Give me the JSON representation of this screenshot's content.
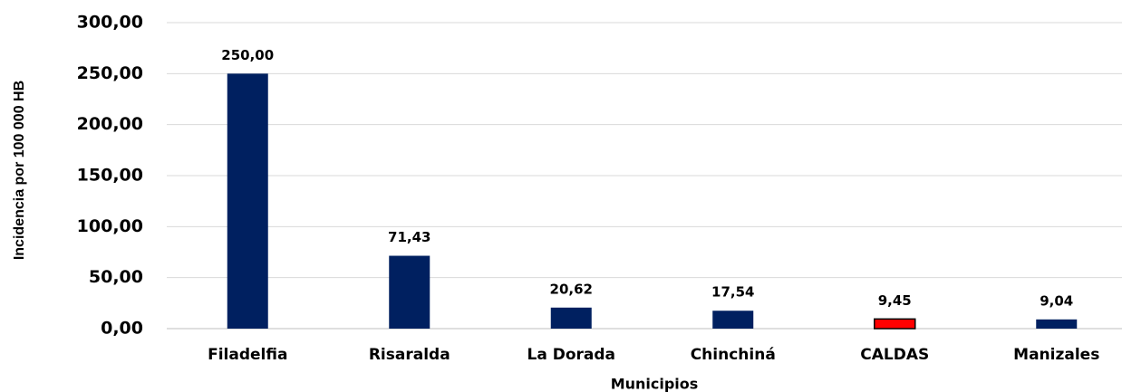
{
  "chart_data": {
    "type": "bar",
    "xlabel": "Municipios",
    "ylabel": "Incidencia por 100 000 HB",
    "categories": [
      "Filadelfia",
      "Risaralda",
      "La Dorada",
      "Chinchiná",
      "CALDAS",
      "Manizales"
    ],
    "values": [
      250.0,
      71.43,
      20.62,
      17.54,
      9.45,
      9.04
    ],
    "value_labels": [
      "250,00",
      "71,43",
      "20,62",
      "17,54",
      "9,45",
      "9,04"
    ],
    "colors": [
      "#002060",
      "#002060",
      "#002060",
      "#002060",
      "#ff0000",
      "#002060"
    ],
    "ylim": [
      0,
      300
    ],
    "yticks": [
      {
        "value": 0,
        "label": "0,00"
      },
      {
        "value": 50,
        "label": "50,00"
      },
      {
        "value": 100,
        "label": "100,00"
      },
      {
        "value": 150,
        "label": "150,00"
      },
      {
        "value": 200,
        "label": "200,00"
      },
      {
        "value": 250,
        "label": "250,00"
      },
      {
        "value": 300,
        "label": "300,00"
      }
    ],
    "grid": true
  }
}
